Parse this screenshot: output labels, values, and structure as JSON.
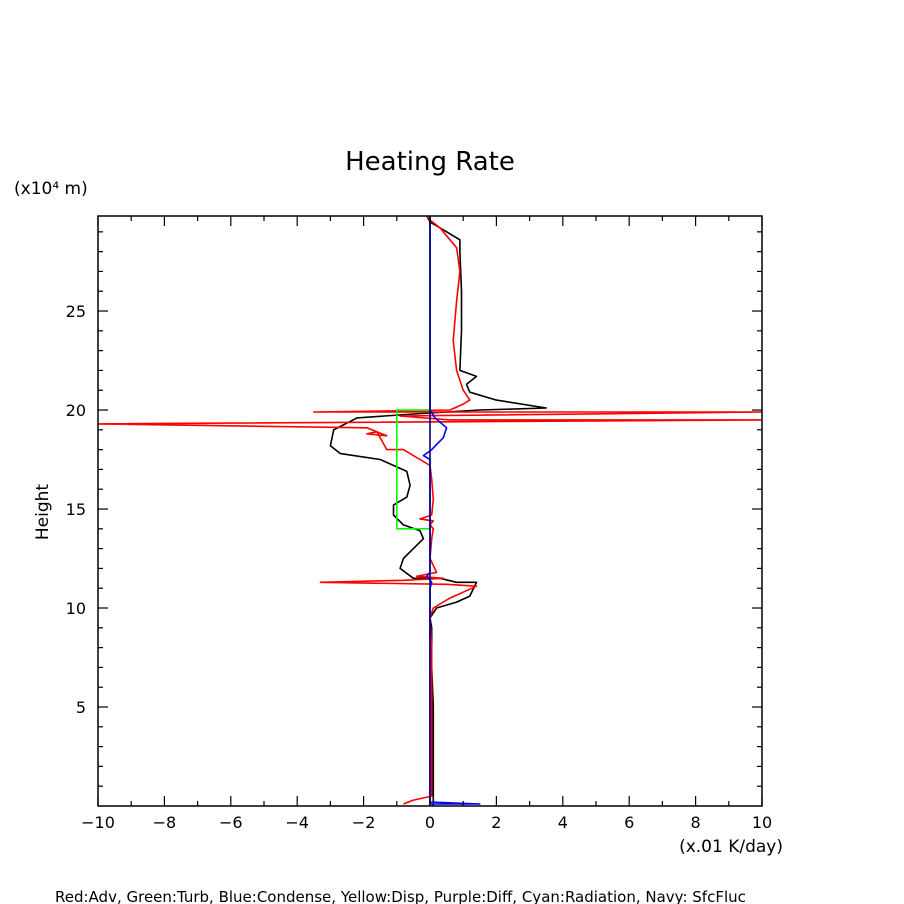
{
  "chart_data": {
    "type": "line",
    "title": "Heating Rate",
    "ylabel": "Height",
    "yunits": "(x10⁴ m)",
    "xunits": "(x.01 K/day)",
    "legend_text": "Red:Adv, Green:Turb, Blue:Condense, Yellow:Disp, Purple:Diff, Cyan:Radiation, Navy: SfcFluc",
    "xlim": [
      -10,
      10
    ],
    "ylim": [
      0,
      29.8
    ],
    "xticks": [
      -10,
      -8,
      -6,
      -4,
      -2,
      0,
      2,
      4,
      6,
      8,
      10
    ],
    "yticks": [
      5,
      10,
      15,
      20,
      25
    ],
    "grid": false,
    "series": [
      {
        "color": "#000000",
        "points": [
          [
            0.1,
            0
          ],
          [
            0.1,
            1
          ],
          [
            0.1,
            3
          ],
          [
            0.1,
            5
          ],
          [
            0.05,
            7
          ],
          [
            0.05,
            9
          ],
          [
            0.0,
            9.5
          ],
          [
            0.2,
            10
          ],
          [
            0.8,
            10.3
          ],
          [
            1.2,
            10.6
          ],
          [
            1.4,
            11.3
          ],
          [
            0.8,
            11.3
          ],
          [
            0.3,
            11.5
          ],
          [
            -0.5,
            11.5
          ],
          [
            -0.9,
            12.0
          ],
          [
            -0.8,
            12.5
          ],
          [
            -0.5,
            13.0
          ],
          [
            -0.2,
            13.5
          ],
          [
            -0.3,
            13.9
          ],
          [
            -0.8,
            14.2
          ],
          [
            -1.1,
            14.7
          ],
          [
            -1.1,
            15.2
          ],
          [
            -0.7,
            15.6
          ],
          [
            -0.6,
            16.2
          ],
          [
            -0.7,
            16.9
          ],
          [
            -1.5,
            17.5
          ],
          [
            -2.7,
            17.8
          ],
          [
            -3.0,
            18.2
          ],
          [
            -2.9,
            19.0
          ],
          [
            -2.2,
            19.6
          ],
          [
            -0.5,
            19.8
          ],
          [
            1.5,
            20.0
          ],
          [
            3.5,
            20.1
          ],
          [
            2.0,
            20.5
          ],
          [
            1.2,
            20.9
          ],
          [
            1.1,
            21.3
          ],
          [
            1.4,
            21.7
          ],
          [
            0.9,
            22.0
          ],
          [
            0.95,
            24.0
          ],
          [
            0.95,
            26.0
          ],
          [
            0.9,
            28.0
          ],
          [
            0.9,
            28.6
          ],
          [
            0.5,
            29.0
          ],
          [
            0.0,
            29.5
          ],
          [
            -0.1,
            29.8
          ]
        ]
      },
      {
        "color": "#ff0000",
        "points": [
          [
            -0.8,
            0.1
          ],
          [
            -0.5,
            0.3
          ],
          [
            0.05,
            0.5
          ],
          [
            0.05,
            2
          ],
          [
            0.05,
            5
          ],
          [
            0.05,
            8
          ],
          [
            0.0,
            9.5
          ],
          [
            0.1,
            10.0
          ],
          [
            0.6,
            10.5
          ],
          [
            1.0,
            10.8
          ],
          [
            1.4,
            11.1
          ],
          [
            0.5,
            11.2
          ],
          [
            -3.3,
            11.3
          ],
          [
            -0.8,
            11.4
          ],
          [
            0.4,
            11.5
          ],
          [
            -0.4,
            11.6
          ],
          [
            0.2,
            11.8
          ],
          [
            0.0,
            12.5
          ],
          [
            0.05,
            13.5
          ],
          [
            0.1,
            14.0
          ],
          [
            0.0,
            14.2
          ],
          [
            0.1,
            14.4
          ],
          [
            -0.3,
            14.5
          ],
          [
            0.05,
            14.7
          ],
          [
            0.1,
            15.5
          ],
          [
            0.05,
            16.5
          ],
          [
            0.0,
            17.2
          ],
          [
            -0.8,
            18.0
          ],
          [
            -1.3,
            18.0
          ],
          [
            -1.6,
            18.9
          ],
          [
            -1.9,
            18.8
          ],
          [
            -1.3,
            18.7
          ],
          [
            -1.9,
            19.1
          ],
          [
            -10,
            19.3
          ],
          [
            10,
            19.5
          ],
          [
            0.6,
            19.5
          ],
          [
            -0.9,
            19.7
          ],
          [
            10,
            19.9
          ],
          [
            -3.5,
            19.9
          ],
          [
            0.6,
            20.0
          ],
          [
            1.0,
            20.3
          ],
          [
            1.2,
            20.5
          ],
          [
            1.0,
            21.0
          ],
          [
            0.9,
            21.5
          ],
          [
            0.8,
            22.0
          ],
          [
            0.7,
            23.5
          ],
          [
            0.8,
            25.5
          ],
          [
            0.9,
            27.0
          ],
          [
            0.8,
            28.2
          ],
          [
            0.5,
            28.8
          ],
          [
            0.3,
            29.2
          ],
          [
            0.0,
            29.6
          ],
          [
            -0.1,
            29.8
          ]
        ]
      },
      {
        "color": "#00ff00",
        "points": [
          [
            0.0,
            14.0
          ],
          [
            -1.0,
            14.0
          ],
          [
            -1.0,
            20.0
          ],
          [
            0.0,
            20.0
          ]
        ]
      },
      {
        "color": "#0000ff",
        "points": [
          [
            0.0,
            0.2
          ],
          [
            1.5,
            0.1
          ],
          [
            0.0,
            0.1
          ],
          [
            0.0,
            11.0
          ],
          [
            0.05,
            11.3
          ],
          [
            -0.1,
            11.6
          ],
          [
            0.0,
            11.8
          ],
          [
            0.0,
            16.8
          ],
          [
            0.0,
            17.5
          ],
          [
            -0.2,
            17.7
          ],
          [
            0.05,
            18.0
          ],
          [
            0.4,
            18.6
          ],
          [
            0.5,
            19.1
          ],
          [
            0.15,
            19.6
          ],
          [
            0.0,
            20.0
          ],
          [
            0.0,
            29.8
          ]
        ]
      },
      {
        "color": "#000080",
        "points": [
          [
            0.0,
            0
          ],
          [
            0.0,
            29.8
          ]
        ]
      }
    ]
  }
}
